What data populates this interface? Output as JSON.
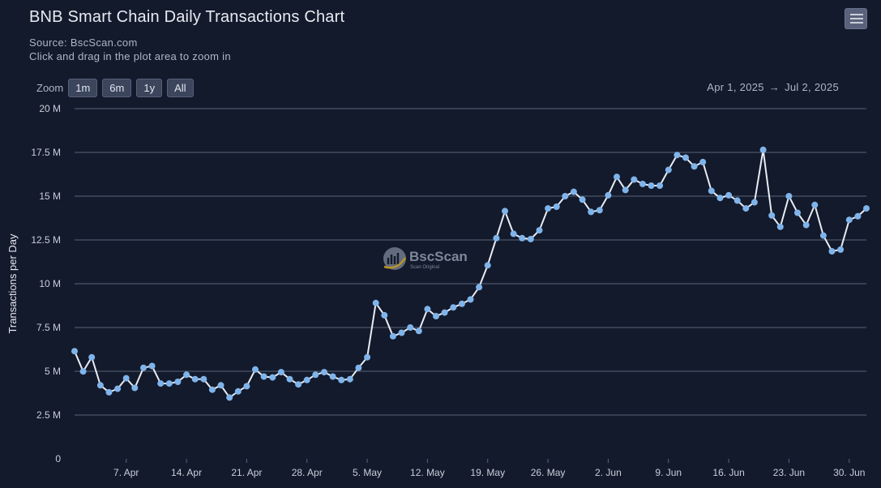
{
  "header": {
    "title": "BNB Smart Chain Daily Transactions Chart",
    "source": "Source: BscScan.com",
    "hint": "Click and drag in the plot area to zoom in"
  },
  "zoom": {
    "label": "Zoom",
    "buttons": [
      "1m",
      "6m",
      "1y",
      "All"
    ]
  },
  "range": {
    "from": "Apr 1, 2025",
    "arrow": "→",
    "to": "Jul 2, 2025"
  },
  "watermark": {
    "name": "BscScan",
    "tagline": "Scan Original"
  },
  "colors": {
    "background": "#131a2c",
    "line": "#e8ecf2",
    "marker": "#7fb4ea",
    "grid": "#5a6478"
  },
  "chart_data": {
    "type": "line",
    "title": "BNB Smart Chain Daily Transactions Chart",
    "ylabel": "Transactions per Day",
    "xlabel": "",
    "ylim": [
      0,
      20000000
    ],
    "yticks": [
      {
        "v": 0,
        "label": "0"
      },
      {
        "v": 2500000,
        "label": "2.5 M"
      },
      {
        "v": 5000000,
        "label": "5 M"
      },
      {
        "v": 7500000,
        "label": "7.5 M"
      },
      {
        "v": 10000000,
        "label": "10 M"
      },
      {
        "v": 12500000,
        "label": "12.5 M"
      },
      {
        "v": 15000000,
        "label": "15 M"
      },
      {
        "v": 17500000,
        "label": "17.5 M"
      },
      {
        "v": 20000000,
        "label": "20 M"
      }
    ],
    "xrange": [
      "2025-04-01",
      "2025-07-02"
    ],
    "xticks": [
      {
        "date": "2025-04-07",
        "label": "7. Apr"
      },
      {
        "date": "2025-04-14",
        "label": "14. Apr"
      },
      {
        "date": "2025-04-21",
        "label": "21. Apr"
      },
      {
        "date": "2025-04-28",
        "label": "28. Apr"
      },
      {
        "date": "2025-05-05",
        "label": "5. May"
      },
      {
        "date": "2025-05-12",
        "label": "12. May"
      },
      {
        "date": "2025-05-19",
        "label": "19. May"
      },
      {
        "date": "2025-05-26",
        "label": "26. May"
      },
      {
        "date": "2025-06-02",
        "label": "2. Jun"
      },
      {
        "date": "2025-06-09",
        "label": "9. Jun"
      },
      {
        "date": "2025-06-16",
        "label": "16. Jun"
      },
      {
        "date": "2025-06-23",
        "label": "23. Jun"
      },
      {
        "date": "2025-06-30",
        "label": "30. Jun"
      }
    ],
    "grid": true,
    "legend": "none",
    "series": [
      {
        "points": [
          {
            "date": "2025-04-01",
            "value": 6150000
          },
          {
            "date": "2025-04-02",
            "value": 4990000
          },
          {
            "date": "2025-04-03",
            "value": 5800000
          },
          {
            "date": "2025-04-04",
            "value": 4200000
          },
          {
            "date": "2025-04-05",
            "value": 3800000
          },
          {
            "date": "2025-04-06",
            "value": 4000000
          },
          {
            "date": "2025-04-07",
            "value": 4600000
          },
          {
            "date": "2025-04-08",
            "value": 4050000
          },
          {
            "date": "2025-04-09",
            "value": 5200000
          },
          {
            "date": "2025-04-10",
            "value": 5300000
          },
          {
            "date": "2025-04-11",
            "value": 4300000
          },
          {
            "date": "2025-04-12",
            "value": 4300000
          },
          {
            "date": "2025-04-13",
            "value": 4400000
          },
          {
            "date": "2025-04-14",
            "value": 4800000
          },
          {
            "date": "2025-04-15",
            "value": 4550000
          },
          {
            "date": "2025-04-16",
            "value": 4550000
          },
          {
            "date": "2025-04-17",
            "value": 3950000
          },
          {
            "date": "2025-04-18",
            "value": 4200000
          },
          {
            "date": "2025-04-19",
            "value": 3500000
          },
          {
            "date": "2025-04-20",
            "value": 3850000
          },
          {
            "date": "2025-04-21",
            "value": 4150000
          },
          {
            "date": "2025-04-22",
            "value": 5100000
          },
          {
            "date": "2025-04-23",
            "value": 4700000
          },
          {
            "date": "2025-04-24",
            "value": 4650000
          },
          {
            "date": "2025-04-25",
            "value": 4950000
          },
          {
            "date": "2025-04-26",
            "value": 4550000
          },
          {
            "date": "2025-04-27",
            "value": 4250000
          },
          {
            "date": "2025-04-28",
            "value": 4500000
          },
          {
            "date": "2025-04-29",
            "value": 4800000
          },
          {
            "date": "2025-04-30",
            "value": 4950000
          },
          {
            "date": "2025-05-01",
            "value": 4700000
          },
          {
            "date": "2025-05-02",
            "value": 4500000
          },
          {
            "date": "2025-05-03",
            "value": 4550000
          },
          {
            "date": "2025-05-04",
            "value": 5200000
          },
          {
            "date": "2025-05-05",
            "value": 5800000
          },
          {
            "date": "2025-05-06",
            "value": 8900000
          },
          {
            "date": "2025-05-07",
            "value": 8200000
          },
          {
            "date": "2025-05-08",
            "value": 7000000
          },
          {
            "date": "2025-05-09",
            "value": 7200000
          },
          {
            "date": "2025-05-10",
            "value": 7500000
          },
          {
            "date": "2025-05-11",
            "value": 7300000
          },
          {
            "date": "2025-05-12",
            "value": 8550000
          },
          {
            "date": "2025-05-13",
            "value": 8150000
          },
          {
            "date": "2025-05-14",
            "value": 8350000
          },
          {
            "date": "2025-05-15",
            "value": 8650000
          },
          {
            "date": "2025-05-16",
            "value": 8850000
          },
          {
            "date": "2025-05-17",
            "value": 9100000
          },
          {
            "date": "2025-05-18",
            "value": 9800000
          },
          {
            "date": "2025-05-19",
            "value": 11050000
          },
          {
            "date": "2025-05-20",
            "value": 12600000
          },
          {
            "date": "2025-05-21",
            "value": 14150000
          },
          {
            "date": "2025-05-22",
            "value": 12850000
          },
          {
            "date": "2025-05-23",
            "value": 12600000
          },
          {
            "date": "2025-05-24",
            "value": 12550000
          },
          {
            "date": "2025-05-25",
            "value": 13050000
          },
          {
            "date": "2025-05-26",
            "value": 14300000
          },
          {
            "date": "2025-05-27",
            "value": 14400000
          },
          {
            "date": "2025-05-28",
            "value": 15000000
          },
          {
            "date": "2025-05-29",
            "value": 15250000
          },
          {
            "date": "2025-05-30",
            "value": 14800000
          },
          {
            "date": "2025-05-31",
            "value": 14100000
          },
          {
            "date": "2025-06-01",
            "value": 14200000
          },
          {
            "date": "2025-06-02",
            "value": 15050000
          },
          {
            "date": "2025-06-03",
            "value": 16100000
          },
          {
            "date": "2025-06-04",
            "value": 15350000
          },
          {
            "date": "2025-06-05",
            "value": 15950000
          },
          {
            "date": "2025-06-06",
            "value": 15700000
          },
          {
            "date": "2025-06-07",
            "value": 15600000
          },
          {
            "date": "2025-06-08",
            "value": 15600000
          },
          {
            "date": "2025-06-09",
            "value": 16500000
          },
          {
            "date": "2025-06-10",
            "value": 17350000
          },
          {
            "date": "2025-06-11",
            "value": 17200000
          },
          {
            "date": "2025-06-12",
            "value": 16700000
          },
          {
            "date": "2025-06-13",
            "value": 16950000
          },
          {
            "date": "2025-06-14",
            "value": 15300000
          },
          {
            "date": "2025-06-15",
            "value": 14900000
          },
          {
            "date": "2025-06-16",
            "value": 15050000
          },
          {
            "date": "2025-06-17",
            "value": 14750000
          },
          {
            "date": "2025-06-18",
            "value": 14300000
          },
          {
            "date": "2025-06-19",
            "value": 14650000
          },
          {
            "date": "2025-06-20",
            "value": 17650000
          },
          {
            "date": "2025-06-21",
            "value": 13900000
          },
          {
            "date": "2025-06-22",
            "value": 13250000
          },
          {
            "date": "2025-06-23",
            "value": 15000000
          },
          {
            "date": "2025-06-24",
            "value": 14050000
          },
          {
            "date": "2025-06-25",
            "value": 13350000
          },
          {
            "date": "2025-06-26",
            "value": 14500000
          },
          {
            "date": "2025-06-27",
            "value": 12750000
          },
          {
            "date": "2025-06-28",
            "value": 11850000
          },
          {
            "date": "2025-06-29",
            "value": 11950000
          },
          {
            "date": "2025-06-30",
            "value": 13650000
          },
          {
            "date": "2025-07-01",
            "value": 13850000
          },
          {
            "date": "2025-07-02",
            "value": 14300000
          }
        ]
      }
    ]
  }
}
